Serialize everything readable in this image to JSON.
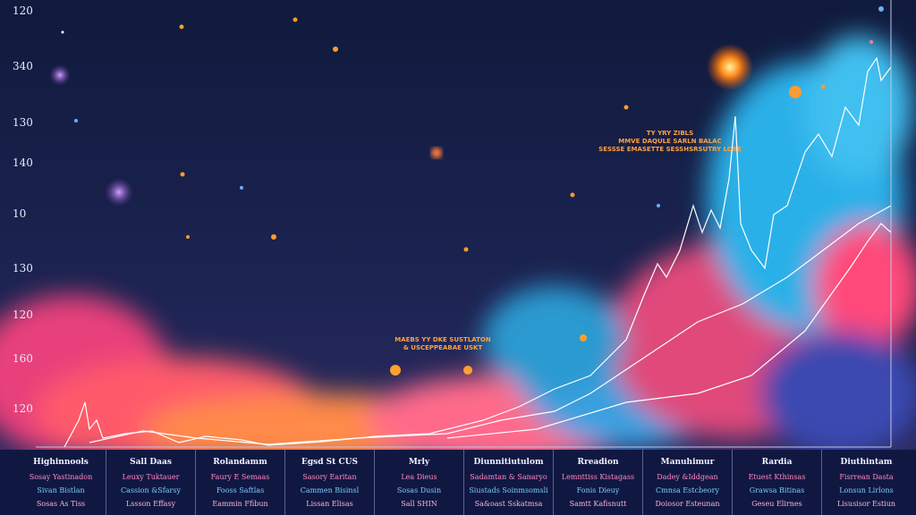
{
  "y_labels": [
    "120",
    "340",
    "130",
    "140",
    "10",
    "130",
    "120",
    "160",
    "120"
  ],
  "annotations": [
    {
      "lines": [
        "TY YRY ZIBLS",
        "MMVE DAQULE SARLN BALAC",
        "SESSSE EMASETTE SESSHSRSUTRY LOBE"
      ]
    },
    {
      "lines": [
        "MAEBS YY DKE SUSTLATON",
        "& USCEPPEABAE USKT"
      ]
    }
  ],
  "footer": {
    "columns": [
      {
        "title": "Highinnools",
        "rows": [
          "Sosay Yastinadon",
          "Sivan Bistlan",
          "Sosas As Tiss"
        ]
      },
      {
        "title": "Sall Daas",
        "rows": [
          "Leuxy Tuktauer",
          "Cassion &Sfarsy",
          "Lssson Effasy"
        ]
      },
      {
        "title": "Rolandamm",
        "rows": [
          "Faury E Semaas",
          "Fooss Saftlas",
          "Eammin Ffibun"
        ]
      },
      {
        "title": "Egsd St CUS",
        "rows": [
          "Sasory Earitan",
          "Cammen Bisinsl",
          "Lissan Elisas"
        ]
      },
      {
        "title": "Mrly",
        "rows": [
          "Lea Dieus",
          "Sosas Dusin",
          "Sall SHIN"
        ]
      },
      {
        "title": "Diunnitiutulom",
        "rows": [
          "Sadamtan & Sanaryo",
          "Siustads Soinmsomsli",
          "Sa&oast Sskatmsa"
        ]
      },
      {
        "title": "Rreadion",
        "rows": [
          "Lemnttiss Kistagass",
          "Fonis Dieuy",
          "Samtt Kafisnutt"
        ]
      },
      {
        "title": "Manuhimur",
        "rows": [
          "Dadey &Iddgean",
          "Cmnsa Estcbeory",
          "Doiosor Esteunan"
        ]
      },
      {
        "title": "Rardia",
        "rows": [
          "Etuest Kthinsas",
          "Grawsa Bitinas",
          "Geseu Elirnes"
        ]
      },
      {
        "title": "Diuthintam",
        "rows": [
          "Fisrrean Dasta",
          "Lonsun Lirlons",
          "Lisusisor Estiun"
        ]
      }
    ]
  }
}
